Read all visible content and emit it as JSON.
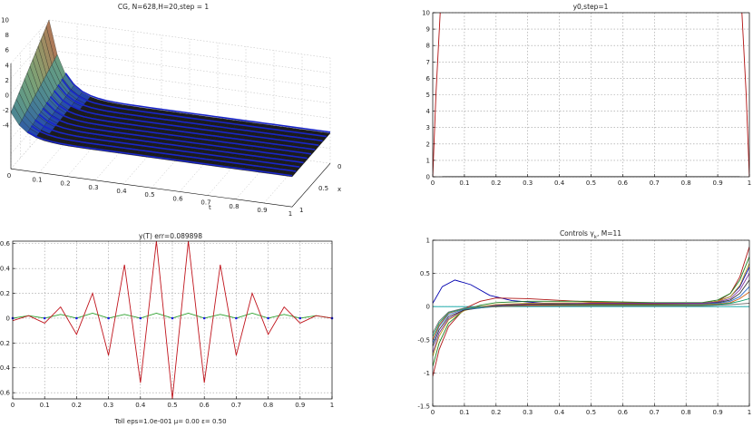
{
  "chart_data": [
    {
      "type": "surface3d",
      "title": "CG, N=628,H=20,step = 1",
      "xlabel": "t",
      "ylabel": "x",
      "x_ticks": [
        "0",
        "0.1",
        "0.2",
        "0.3",
        "0.4",
        "0.5",
        "0.6",
        "0.7",
        "0.8",
        "0.9",
        "1"
      ],
      "y_ticks": [
        "0",
        "0.5",
        "1"
      ],
      "z_ticks": [
        "-4",
        "-2",
        "0",
        "2",
        "4",
        "6",
        "8",
        "10"
      ],
      "zlim": [
        -4,
        10
      ],
      "surface_peak": 10,
      "colors": {
        "floor": "#1c1c1c",
        "lines": "#1a26c8"
      }
    },
    {
      "type": "line",
      "title": "y0,step=1",
      "xlim": [
        0,
        1
      ],
      "ylim": [
        0,
        10
      ],
      "x_ticks": [
        "0",
        "0.1",
        "0.2",
        "0.3",
        "0.4",
        "0.5",
        "0.6",
        "0.7",
        "0.8",
        "0.9",
        "1"
      ],
      "y_ticks": [
        "0",
        "1",
        "2",
        "3",
        "4",
        "5",
        "6",
        "7",
        "8",
        "9",
        "10"
      ],
      "grid": true,
      "series": [
        {
          "color": "#b01010",
          "x": [
            0,
            0.01,
            0.025,
            0.975,
            0.99,
            1
          ],
          "y": [
            0,
            5,
            10.5,
            10.5,
            5,
            0
          ]
        },
        {
          "color": "#000000",
          "x": [
            0.03,
            0.97
          ],
          "y": [
            0,
            0
          ]
        }
      ]
    },
    {
      "type": "line",
      "title": "y(T) err=0.089898",
      "caption": "Toll eps=1.0e-001 μ=    0.00 ε=    0.50",
      "xlim": [
        0,
        1
      ],
      "ylim": [
        -0.65,
        0.62
      ],
      "x_ticks": [
        "0",
        "0.1",
        "0.2",
        "0.3",
        "0.4",
        "0.5",
        "0.6",
        "0.7",
        "0.8",
        "0.9",
        "1"
      ],
      "y_ticks": [
        "-0.6",
        "-0.4",
        "-0.2",
        "0",
        "0.2",
        "0.4",
        "0.6"
      ],
      "grid": true,
      "series": [
        {
          "color": "#2ca02c",
          "x": [
            0,
            0.05,
            0.1,
            0.15,
            0.2,
            0.25,
            0.3,
            0.35,
            0.4,
            0.45,
            0.5,
            0.55,
            0.6,
            0.65,
            0.7,
            0.75,
            0.8,
            0.85,
            0.9,
            0.95,
            1
          ],
          "y": [
            0,
            0.02,
            0,
            0.03,
            0,
            0.04,
            0,
            0.03,
            0,
            0.04,
            0,
            0.04,
            0,
            0.03,
            0,
            0.04,
            0,
            0.03,
            0,
            0.02,
            0
          ]
        },
        {
          "color": "#c0141c",
          "x": [
            0,
            0.05,
            0.1,
            0.15,
            0.2,
            0.25,
            0.3,
            0.35,
            0.4,
            0.45,
            0.5,
            0.55,
            0.6,
            0.65,
            0.7,
            0.75,
            0.8,
            0.85,
            0.9,
            0.95,
            1
          ],
          "y": [
            -0.02,
            0.02,
            -0.04,
            0.09,
            -0.13,
            0.2,
            -0.3,
            0.43,
            -0.52,
            0.62,
            -0.65,
            0.62,
            -0.52,
            0.43,
            -0.3,
            0.2,
            -0.13,
            0.09,
            -0.04,
            0.02,
            0
          ]
        }
      ],
      "markers": {
        "color": "#1a1ae0",
        "x": [
          0,
          0.1,
          0.2,
          0.3,
          0.4,
          0.5,
          0.6,
          0.7,
          0.8,
          0.9,
          1
        ],
        "y": [
          0,
          0,
          0,
          0,
          0,
          0,
          0,
          0,
          0,
          0,
          0
        ]
      }
    },
    {
      "type": "line",
      "title": "Controls γ_k, M=11",
      "xlim": [
        0,
        1
      ],
      "ylim": [
        -1.5,
        1
      ],
      "x_ticks": [
        "0",
        "0.1",
        "0.2",
        "0.3",
        "0.4",
        "0.5",
        "0.6",
        "0.7",
        "0.8",
        "0.9",
        "1"
      ],
      "y_ticks": [
        "-1.5",
        "-1",
        "-0.5",
        "0",
        "0.5",
        "1"
      ],
      "grid": true,
      "series": [
        {
          "color": "#00a0a0",
          "x": [
            0,
            0.1,
            0.2,
            0.4,
            0.6,
            0.8,
            0.9,
            0.95,
            1
          ],
          "y": [
            0,
            0,
            0,
            0,
            0,
            0,
            0,
            0,
            0
          ]
        },
        {
          "color": "#0000b0",
          "x": [
            0,
            0.03,
            0.07,
            0.12,
            0.18,
            0.25,
            0.35,
            0.5,
            0.7,
            0.85,
            0.9,
            0.94,
            0.97,
            1
          ],
          "y": [
            0.05,
            0.3,
            0.4,
            0.33,
            0.17,
            0.09,
            0.05,
            0.04,
            0.04,
            0.05,
            0.08,
            0.15,
            0.3,
            0.6
          ]
        },
        {
          "color": "#b01818",
          "x": [
            0,
            0.02,
            0.05,
            0.1,
            0.15,
            0.2,
            0.3,
            0.5,
            0.7,
            0.85,
            0.9,
            0.94,
            0.97,
            1
          ],
          "y": [
            -1.05,
            -0.65,
            -0.3,
            -0.03,
            0.08,
            0.13,
            0.12,
            0.07,
            0.05,
            0.05,
            0.08,
            0.2,
            0.45,
            0.9
          ]
        },
        {
          "color": "#208020",
          "x": [
            0,
            0.02,
            0.05,
            0.1,
            0.15,
            0.2,
            0.3,
            0.5,
            0.7,
            0.85,
            0.9,
            0.94,
            0.97,
            1
          ],
          "y": [
            -0.9,
            -0.55,
            -0.25,
            -0.05,
            0.02,
            0.06,
            0.08,
            0.08,
            0.06,
            0.06,
            0.1,
            0.2,
            0.4,
            0.75
          ]
        },
        {
          "color": "#c0a020",
          "x": [
            0,
            0.02,
            0.05,
            0.1,
            0.15,
            0.2,
            0.3,
            0.5,
            0.7,
            0.85,
            0.9,
            0.94,
            0.97,
            1
          ],
          "y": [
            -0.75,
            -0.45,
            -0.2,
            -0.06,
            0,
            0.03,
            0.05,
            0.06,
            0.05,
            0.05,
            0.08,
            0.15,
            0.32,
            0.65
          ]
        },
        {
          "color": "#8030a0",
          "x": [
            0,
            0.02,
            0.05,
            0.1,
            0.15,
            0.2,
            0.3,
            0.5,
            0.7,
            0.85,
            0.9,
            0.94,
            0.97,
            1
          ],
          "y": [
            -0.7,
            -0.4,
            -0.18,
            -0.05,
            -0.01,
            0.02,
            0.04,
            0.05,
            0.05,
            0.05,
            0.07,
            0.12,
            0.25,
            0.5
          ]
        },
        {
          "color": "#303030",
          "x": [
            0,
            0.02,
            0.05,
            0.1,
            0.15,
            0.2,
            0.3,
            0.5,
            0.7,
            0.85,
            0.9,
            0.94,
            0.97,
            1
          ],
          "y": [
            -0.6,
            -0.35,
            -0.15,
            -0.05,
            -0.02,
            0.01,
            0.03,
            0.04,
            0.04,
            0.04,
            0.06,
            0.1,
            0.2,
            0.4
          ]
        },
        {
          "color": "#3070d0",
          "x": [
            0,
            0.02,
            0.05,
            0.1,
            0.15,
            0.2,
            0.3,
            0.5,
            0.7,
            0.85,
            0.9,
            0.94,
            0.97,
            1
          ],
          "y": [
            -0.55,
            -0.3,
            -0.12,
            -0.04,
            -0.02,
            0,
            0.02,
            0.03,
            0.03,
            0.04,
            0.05,
            0.08,
            0.15,
            0.3
          ]
        },
        {
          "color": "#d06010",
          "x": [
            0,
            0.02,
            0.05,
            0.1,
            0.15,
            0.2,
            0.3,
            0.5,
            0.7,
            0.85,
            0.9,
            0.94,
            0.97,
            1
          ],
          "y": [
            -0.5,
            -0.28,
            -0.1,
            -0.03,
            -0.01,
            0,
            0.02,
            0.03,
            0.03,
            0.03,
            0.04,
            0.06,
            0.12,
            0.22
          ]
        },
        {
          "color": "#10a070",
          "x": [
            0,
            0.02,
            0.05,
            0.1,
            0.15,
            0.2,
            0.3,
            0.5,
            0.7,
            0.85,
            0.9,
            0.94,
            0.97,
            1
          ],
          "y": [
            -0.45,
            -0.25,
            -0.09,
            -0.03,
            -0.01,
            0,
            0.01,
            0.02,
            0.02,
            0.02,
            0.03,
            0.05,
            0.08,
            0.12
          ]
        },
        {
          "color": "#707070",
          "x": [
            0,
            0.02,
            0.05,
            0.1,
            0.15,
            0.2,
            0.3,
            0.5,
            0.7,
            0.85,
            0.9,
            0.94,
            0.97,
            1
          ],
          "y": [
            -0.4,
            -0.22,
            -0.08,
            -0.02,
            0,
            0,
            0.01,
            0.01,
            0.01,
            0.01,
            0.02,
            0.03,
            0.04,
            0.05
          ]
        }
      ]
    }
  ]
}
